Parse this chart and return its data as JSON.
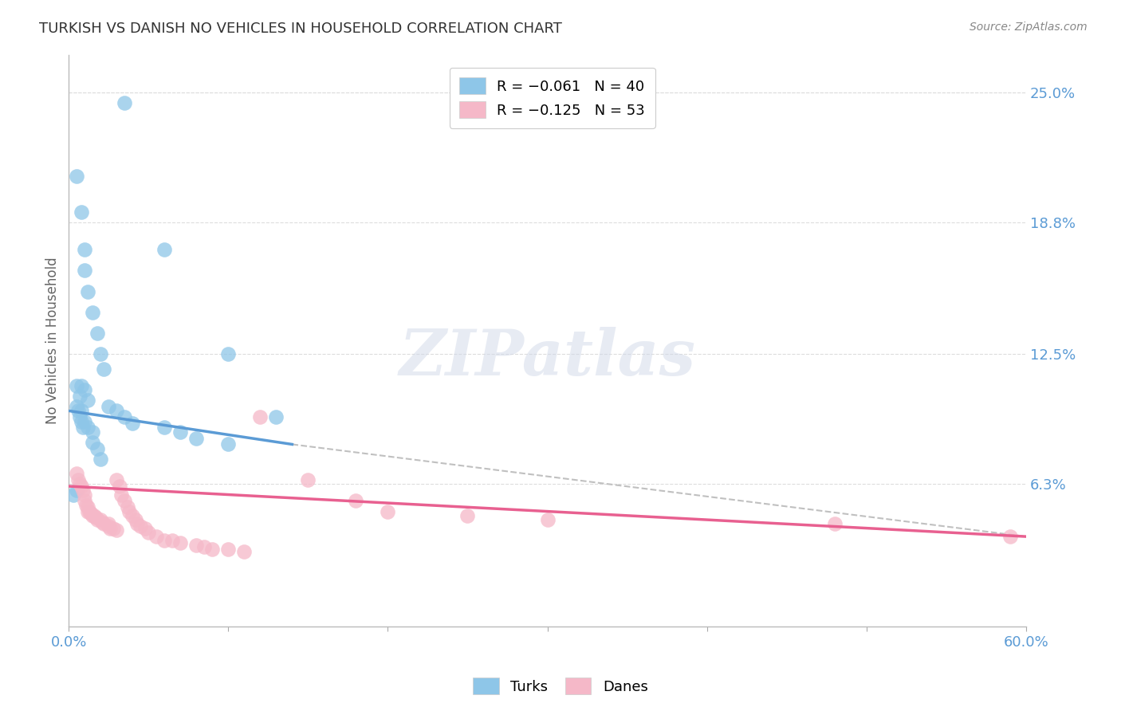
{
  "title": "TURKISH VS DANISH NO VEHICLES IN HOUSEHOLD CORRELATION CHART",
  "source": "Source: ZipAtlas.com",
  "ylabel": "No Vehicles in Household",
  "ytick_labels": [
    "6.3%",
    "12.5%",
    "18.8%",
    "25.0%"
  ],
  "ytick_values": [
    0.063,
    0.125,
    0.188,
    0.25
  ],
  "xlim": [
    0.0,
    0.6
  ],
  "ylim": [
    -0.005,
    0.268
  ],
  "turks_x": [
    0.005,
    0.008,
    0.01,
    0.01,
    0.012,
    0.015,
    0.018,
    0.02,
    0.022,
    0.005,
    0.007,
    0.008,
    0.01,
    0.012,
    0.015,
    0.015,
    0.018,
    0.02,
    0.008,
    0.01,
    0.012,
    0.005,
    0.006,
    0.007,
    0.008,
    0.009,
    0.025,
    0.03,
    0.035,
    0.04,
    0.06,
    0.07,
    0.08,
    0.1,
    0.035,
    0.06,
    0.1,
    0.13,
    0.005,
    0.003
  ],
  "turks_y": [
    0.21,
    0.193,
    0.175,
    0.165,
    0.155,
    0.145,
    0.135,
    0.125,
    0.118,
    0.11,
    0.105,
    0.098,
    0.093,
    0.09,
    0.088,
    0.083,
    0.08,
    0.075,
    0.11,
    0.108,
    0.103,
    0.1,
    0.098,
    0.095,
    0.093,
    0.09,
    0.1,
    0.098,
    0.095,
    0.092,
    0.09,
    0.088,
    0.085,
    0.082,
    0.245,
    0.175,
    0.125,
    0.095,
    0.06,
    0.058
  ],
  "danes_x": [
    0.005,
    0.006,
    0.007,
    0.008,
    0.009,
    0.01,
    0.01,
    0.011,
    0.012,
    0.012,
    0.013,
    0.014,
    0.015,
    0.016,
    0.017,
    0.018,
    0.02,
    0.021,
    0.022,
    0.025,
    0.025,
    0.026,
    0.028,
    0.03,
    0.03,
    0.032,
    0.033,
    0.035,
    0.037,
    0.038,
    0.04,
    0.042,
    0.043,
    0.045,
    0.048,
    0.05,
    0.055,
    0.06,
    0.065,
    0.07,
    0.08,
    0.085,
    0.09,
    0.1,
    0.11,
    0.12,
    0.15,
    0.18,
    0.2,
    0.25,
    0.3,
    0.48,
    0.59
  ],
  "danes_y": [
    0.068,
    0.065,
    0.063,
    0.062,
    0.06,
    0.058,
    0.055,
    0.053,
    0.052,
    0.05,
    0.05,
    0.049,
    0.048,
    0.048,
    0.047,
    0.046,
    0.046,
    0.045,
    0.044,
    0.044,
    0.043,
    0.042,
    0.042,
    0.041,
    0.065,
    0.062,
    0.058,
    0.055,
    0.052,
    0.05,
    0.048,
    0.046,
    0.044,
    0.043,
    0.042,
    0.04,
    0.038,
    0.036,
    0.036,
    0.035,
    0.034,
    0.033,
    0.032,
    0.032,
    0.031,
    0.095,
    0.065,
    0.055,
    0.05,
    0.048,
    0.046,
    0.044,
    0.038
  ],
  "turks_color": "#8ec6e8",
  "danes_color": "#f5b8c8",
  "turks_line_color": "#5b9bd5",
  "danes_line_color": "#e86090",
  "trend_dash_color": "#c0c0c0",
  "turks_line_x": [
    0.0,
    0.14
  ],
  "turks_line_y": [
    0.098,
    0.082
  ],
  "danes_line_x": [
    0.0,
    0.6
  ],
  "danes_line_y": [
    0.062,
    0.038
  ],
  "dash_line_x": [
    0.14,
    0.6
  ],
  "dash_line_y": [
    0.082,
    0.038
  ],
  "watermark_text": "ZIPatlas",
  "background_color": "#ffffff"
}
